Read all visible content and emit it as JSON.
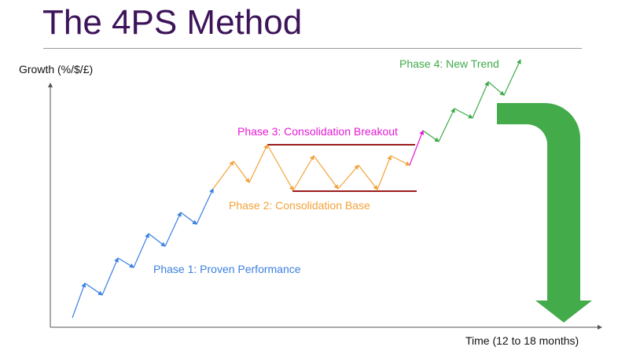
{
  "title": "The 4PS Method",
  "axes": {
    "ylabel": "Growth (%/$/£)",
    "xlabel": "Time (12 to 18 months)"
  },
  "colors": {
    "title": "#3d1359",
    "phase1": "#3b7fe0",
    "phase2": "#f2a33a",
    "phase3": "#e619d6",
    "phase4": "#3eaa4a",
    "levels": "#9b1b1b",
    "big_arrow": "#44ab4b"
  },
  "phases": [
    {
      "id": "phase1",
      "label": "Phase 1: Proven Performance"
    },
    {
      "id": "phase2",
      "label": "Phase 2: Consolidation Base"
    },
    {
      "id": "phase3",
      "label": "Phase 3: Consolidation Breakout"
    },
    {
      "id": "phase4",
      "label": "Phase 4: New Trend"
    }
  ],
  "big_arrow_icon": "curved-down-arrow-icon"
}
